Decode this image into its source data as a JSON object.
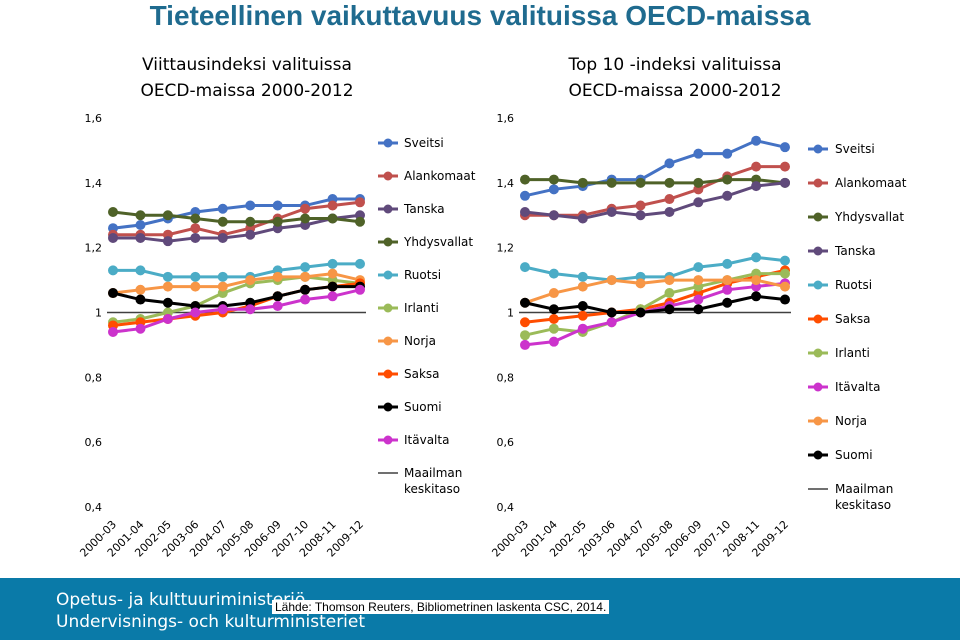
{
  "page_title": "Tieteellinen vaikuttavuus valituissa OECD-maissa",
  "footer": {
    "ministry_fi": "Opetus- ja kulttuuriministeriö",
    "ministry_sv": "Undervisnings- och kulturministeriet",
    "source": "Lähde: Thomson Reuters, Bibliometrinen laskenta CSC, 2014."
  },
  "colors": {
    "title": "#1f6b8f",
    "footer_bg": "#0a7aa8",
    "Sveitsi": "#4472c4",
    "Alankomaat": "#c0504d",
    "Yhdysvallat": "#4f6228",
    "Tanska": "#604a7b",
    "Ruotsi": "#4bacc6",
    "Irlanti": "#9bbb59",
    "Norja": "#f79646",
    "Saksa": "#ff4d00",
    "Suomi": "#000000",
    "Itävalta": "#cc33cc",
    "Maailman keskitaso": "#404040"
  },
  "chart_data": [
    {
      "type": "line",
      "title": "Viittausindeksi valituissa OECD-maissa 2000-2012",
      "categories": [
        "2000-03",
        "2001-04",
        "2002-05",
        "2003-06",
        "2004-07",
        "2005-08",
        "2006-09",
        "2007-10",
        "2008-11",
        "2009-12"
      ],
      "ylim": [
        0.4,
        1.6
      ],
      "yticks": [
        "0,4",
        "0,6",
        "0,8",
        "1",
        "1,2",
        "1,4",
        "1,6"
      ],
      "yticks_values": [
        0.4,
        0.6,
        0.8,
        1.0,
        1.2,
        1.4,
        1.6
      ],
      "legend_position": "right",
      "reference_line": {
        "name": "Maailman keskitaso",
        "value": 1.0
      },
      "series": [
        {
          "name": "Sveitsi",
          "values": [
            1.26,
            1.27,
            1.29,
            1.31,
            1.32,
            1.33,
            1.33,
            1.33,
            1.35,
            1.35
          ]
        },
        {
          "name": "Alankomaat",
          "values": [
            1.24,
            1.24,
            1.24,
            1.26,
            1.24,
            1.26,
            1.29,
            1.32,
            1.33,
            1.34
          ]
        },
        {
          "name": "Tanska",
          "values": [
            1.23,
            1.23,
            1.22,
            1.23,
            1.23,
            1.24,
            1.26,
            1.27,
            1.29,
            1.3
          ]
        },
        {
          "name": "Yhdysvallat",
          "values": [
            1.31,
            1.3,
            1.3,
            1.29,
            1.28,
            1.28,
            1.28,
            1.29,
            1.29,
            1.28
          ]
        },
        {
          "name": "Ruotsi",
          "values": [
            1.13,
            1.13,
            1.11,
            1.11,
            1.11,
            1.11,
            1.13,
            1.14,
            1.15,
            1.15
          ]
        },
        {
          "name": "Irlanti",
          "values": [
            0.97,
            0.98,
            1.0,
            1.02,
            1.06,
            1.09,
            1.1,
            1.11,
            1.1,
            1.09
          ]
        },
        {
          "name": "Norja",
          "values": [
            1.06,
            1.07,
            1.08,
            1.08,
            1.08,
            1.1,
            1.11,
            1.11,
            1.12,
            1.1
          ]
        },
        {
          "name": "Saksa",
          "values": [
            0.96,
            0.97,
            0.98,
            0.99,
            1.0,
            1.02,
            1.05,
            1.07,
            1.08,
            1.09
          ]
        },
        {
          "name": "Suomi",
          "values": [
            1.06,
            1.04,
            1.03,
            1.02,
            1.02,
            1.03,
            1.05,
            1.07,
            1.08,
            1.08
          ]
        },
        {
          "name": "Itävalta",
          "values": [
            0.94,
            0.95,
            0.98,
            1.0,
            1.01,
            1.01,
            1.02,
            1.04,
            1.05,
            1.07
          ]
        }
      ],
      "legend": [
        "Sveitsi",
        "Alankomaat",
        "Tanska",
        "Yhdysvallat",
        "Ruotsi",
        "Irlanti",
        "Norja",
        "Saksa",
        "Suomi",
        "Itävalta",
        "Maailman keskitaso"
      ]
    },
    {
      "type": "line",
      "title": "Top 10 -indeksi valituissa OECD-maissa 2000-2012",
      "categories": [
        "2000-03",
        "2001-04",
        "2002-05",
        "2003-06",
        "2004-07",
        "2005-08",
        "2006-09",
        "2007-10",
        "2008-11",
        "2009-12"
      ],
      "ylim": [
        0.4,
        1.6
      ],
      "yticks": [
        "0,4",
        "0,6",
        "0,8",
        "1",
        "1,2",
        "1,4",
        "1,6"
      ],
      "yticks_values": [
        0.4,
        0.6,
        0.8,
        1.0,
        1.2,
        1.4,
        1.6
      ],
      "legend_position": "right",
      "reference_line": {
        "name": "Maailman keskitaso",
        "value": 1.0
      },
      "series": [
        {
          "name": "Sveitsi",
          "values": [
            1.36,
            1.38,
            1.39,
            1.41,
            1.41,
            1.46,
            1.49,
            1.49,
            1.53,
            1.51
          ]
        },
        {
          "name": "Alankomaat",
          "values": [
            1.3,
            1.3,
            1.3,
            1.32,
            1.33,
            1.35,
            1.38,
            1.42,
            1.45,
            1.45
          ]
        },
        {
          "name": "Yhdysvallat",
          "values": [
            1.41,
            1.41,
            1.4,
            1.4,
            1.4,
            1.4,
            1.4,
            1.41,
            1.41,
            1.4
          ]
        },
        {
          "name": "Tanska",
          "values": [
            1.31,
            1.3,
            1.29,
            1.31,
            1.3,
            1.31,
            1.34,
            1.36,
            1.39,
            1.4
          ]
        },
        {
          "name": "Ruotsi",
          "values": [
            1.14,
            1.12,
            1.11,
            1.1,
            1.11,
            1.11,
            1.14,
            1.15,
            1.17,
            1.16
          ]
        },
        {
          "name": "Saksa",
          "values": [
            0.97,
            0.98,
            0.99,
            1.0,
            1.01,
            1.03,
            1.06,
            1.09,
            1.11,
            1.13
          ]
        },
        {
          "name": "Irlanti",
          "values": [
            0.93,
            0.95,
            0.94,
            0.97,
            1.01,
            1.06,
            1.08,
            1.1,
            1.12,
            1.12
          ]
        },
        {
          "name": "Itävalta",
          "values": [
            0.9,
            0.91,
            0.95,
            0.97,
            1.0,
            1.02,
            1.04,
            1.07,
            1.08,
            1.09
          ]
        },
        {
          "name": "Norja",
          "values": [
            1.03,
            1.06,
            1.08,
            1.1,
            1.09,
            1.1,
            1.1,
            1.1,
            1.1,
            1.08
          ]
        },
        {
          "name": "Suomi",
          "values": [
            1.03,
            1.01,
            1.02,
            1.0,
            1.0,
            1.01,
            1.01,
            1.03,
            1.05,
            1.04
          ]
        }
      ],
      "legend": [
        "Sveitsi",
        "Alankomaat",
        "Yhdysvallat",
        "Tanska",
        "Ruotsi",
        "Saksa",
        "Irlanti",
        "Itävalta",
        "Norja",
        "Suomi",
        "Maailman keskitaso"
      ]
    }
  ]
}
